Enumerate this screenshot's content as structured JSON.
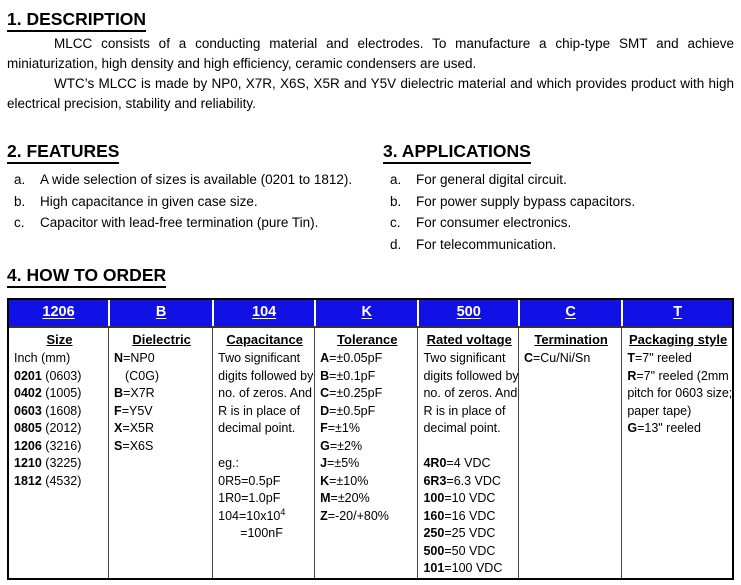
{
  "colors": {
    "header_blue": "#1111E6"
  },
  "description": {
    "title": "1. DESCRIPTION",
    "paragraphs": [
      "MLCC consists of a conducting material and electrodes. To manufacture a chip-type SMT and achieve miniaturization, high density and high efficiency, ceramic condensers are used.",
      "WTC’s MLCC is made by NP0, X7R, X6S, X5R and Y5V dielectric material and which provides product with high electrical precision, stability and reliability."
    ]
  },
  "features": {
    "title": "2. FEATURES",
    "items": [
      {
        "marker": "a.",
        "text": "A wide selection of sizes is available (0201 to 1812)."
      },
      {
        "marker": "b.",
        "text": "High capacitance in given case size."
      },
      {
        "marker": "c.",
        "text": "Capacitor with lead-free termination (pure Tin)."
      }
    ]
  },
  "applications": {
    "title": "3. APPLICATIONS",
    "items": [
      {
        "marker": "a.",
        "text": "For general digital circuit."
      },
      {
        "marker": "b.",
        "text": "For power supply bypass capacitors."
      },
      {
        "marker": "c.",
        "text": "For consumer electronics."
      },
      {
        "marker": "d.",
        "text": "For telecommunication."
      }
    ]
  },
  "how_to_order": {
    "title": "4. HOW TO ORDER",
    "columns": [
      {
        "code": "1206",
        "name": "Size",
        "lines": [
          {
            "t": "Inch (mm)"
          },
          {
            "b": "0201",
            "t": " (0603)"
          },
          {
            "b": "0402",
            "t": " (1005)"
          },
          {
            "b": "0603",
            "t": " (1608)"
          },
          {
            "b": "0805",
            "t": " (2012)"
          },
          {
            "b": "1206",
            "t": " (3216)"
          },
          {
            "b": "1210",
            "t": " (3225)"
          },
          {
            "b": "1812",
            "t": " (4532)"
          }
        ]
      },
      {
        "code": "B",
        "name": "Dielectric",
        "lines": [
          {
            "b": "N",
            "t": "=NP0"
          },
          {
            "t": "(C0G)",
            "indent": 1
          },
          {
            "b": "B",
            "t": "=X7R"
          },
          {
            "b": "F",
            "t": "=Y5V"
          },
          {
            "b": "X",
            "t": "=X5R"
          },
          {
            "b": "S",
            "t": "=X6S"
          }
        ]
      },
      {
        "code": "104",
        "name": "Capacitance",
        "lines": [
          {
            "t": "Two significant"
          },
          {
            "t": "digits followed by"
          },
          {
            "t": "no. of zeros. And"
          },
          {
            "t": "R is in place of"
          },
          {
            "t": "decimal point."
          },
          {
            "t": ""
          },
          {
            "t": "eg.:"
          },
          {
            "t": "0R5=0.5pF"
          },
          {
            "t": "1R0=1.0pF"
          },
          {
            "t": "104=10x10",
            "sup": "4"
          },
          {
            "t": "=100nF",
            "indent": 2
          }
        ]
      },
      {
        "code": "K",
        "name": "Tolerance",
        "lines": [
          {
            "b": "A",
            "t": "=±0.05pF"
          },
          {
            "b": "B",
            "t": "=±0.1pF"
          },
          {
            "b": "C",
            "t": "=±0.25pF"
          },
          {
            "b": "D",
            "t": "=±0.5pF"
          },
          {
            "b": "F",
            "t": "=±1%"
          },
          {
            "b": "G",
            "t": "=±2%"
          },
          {
            "b": "J",
            "t": "=±5%"
          },
          {
            "b": "K",
            "t": "=±10%"
          },
          {
            "b": "M",
            "t": "=±20%"
          },
          {
            "b": "Z",
            "t": "=-20/+80%"
          }
        ]
      },
      {
        "code": "500",
        "name": "Rated voltage",
        "lines": [
          {
            "t": "Two significant"
          },
          {
            "t": "digits followed by"
          },
          {
            "t": "no. of zeros. And"
          },
          {
            "t": "R is in place of"
          },
          {
            "t": "decimal point."
          },
          {
            "t": ""
          },
          {
            "b": "4R0",
            "t": "=4 VDC"
          },
          {
            "b": "6R3",
            "t": "=6.3 VDC"
          },
          {
            "b": "100",
            "t": "=10 VDC"
          },
          {
            "b": "160",
            "t": "=16 VDC"
          },
          {
            "b": "250",
            "t": "=25 VDC"
          },
          {
            "b": "500",
            "t": "=50 VDC"
          },
          {
            "b": "101",
            "t": "=100 VDC"
          }
        ]
      },
      {
        "code": "C",
        "name": "Termination",
        "lines": [
          {
            "b": "C",
            "t": "=Cu/Ni/Sn"
          }
        ]
      },
      {
        "code": "T",
        "name": "Packaging style",
        "lines": [
          {
            "b": "T",
            "t": "=7\" reeled"
          },
          {
            "b": "R",
            "t": "=7\" reeled (2mm"
          },
          {
            "t": "pitch for 0603 size;"
          },
          {
            "t": "paper tape)"
          },
          {
            "b": "G",
            "t": "=13\" reeled"
          }
        ]
      }
    ]
  }
}
